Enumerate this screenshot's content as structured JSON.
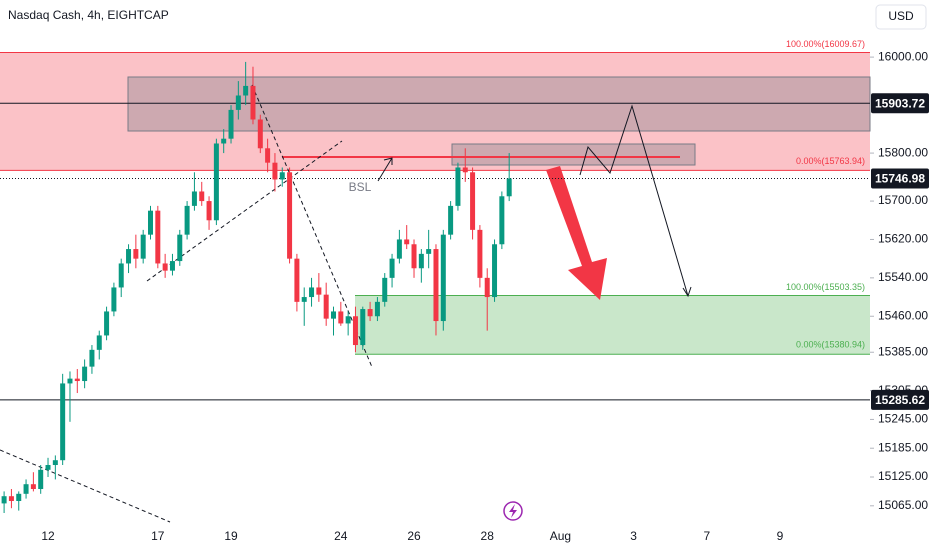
{
  "chart_data": {
    "type": "candlestick",
    "title": "Nasdaq Cash, 4h, EIGHTCAP",
    "currency": "USD",
    "categories": [
      null,
      null,
      null,
      null,
      null,
      null,
      "12",
      null,
      null,
      null,
      null,
      null,
      null,
      null,
      null,
      null,
      null,
      null,
      null,
      null,
      null,
      "17",
      null,
      null,
      null,
      null,
      null,
      null,
      null,
      null,
      null,
      "19",
      null,
      null,
      null,
      null,
      null,
      null,
      null,
      null,
      null,
      null,
      null,
      null,
      null,
      null,
      "24",
      null,
      null,
      null,
      null,
      null,
      null,
      null,
      null,
      null,
      "26",
      null,
      null,
      null,
      null,
      null,
      null,
      null,
      null,
      null,
      "28",
      null,
      null,
      null,
      null,
      null,
      null,
      null,
      null,
      null,
      "Aug",
      null,
      null,
      null,
      null,
      null,
      null,
      null,
      null,
      null,
      "3",
      null,
      null,
      null,
      null,
      null,
      null,
      null,
      null,
      null,
      "7",
      null,
      null,
      null,
      null,
      null,
      null,
      null,
      null,
      null,
      "9",
      null,
      null,
      null,
      null,
      null,
      null,
      null,
      null,
      null,
      null,
      null,
      null
    ],
    "open": [
      15070,
      15085,
      15075,
      15090,
      15110,
      15100,
      15140,
      15150,
      15160,
      15320,
      15330,
      15325,
      15355,
      15390,
      15420,
      15470,
      15520,
      15570,
      15600,
      15580,
      15630,
      15680,
      15570,
      15555,
      15575,
      15630,
      15690,
      15720,
      15700,
      15660,
      15820,
      15830,
      15890,
      15920,
      15940,
      15870,
      15810,
      15780,
      15745,
      15760,
      15580,
      15490,
      15500,
      15520,
      15505,
      15455,
      15470,
      15445,
      15460,
      15400,
      15475,
      15460,
      15490,
      15540,
      15580,
      15620,
      15610,
      15560,
      15590,
      15600,
      15450,
      15630,
      15690,
      15770,
      15760,
      15640,
      15540,
      15500,
      15610,
      15710,
      null,
      null,
      null,
      null,
      null,
      null,
      null,
      null,
      null,
      null,
      null,
      null,
      null,
      null,
      null,
      null,
      null,
      null,
      null,
      null,
      null,
      null,
      null,
      null,
      null,
      null,
      null,
      null,
      null,
      null,
      null,
      null,
      null,
      null,
      null,
      null,
      null,
      null,
      null,
      null,
      null,
      null,
      null,
      null,
      null,
      null,
      null,
      null,
      null
    ],
    "high": [
      15095,
      15100,
      15095,
      15120,
      15135,
      15150,
      15165,
      15170,
      15340,
      15345,
      15350,
      15370,
      15400,
      15430,
      15480,
      15530,
      15580,
      15610,
      15630,
      15640,
      15690,
      15690,
      15590,
      15590,
      15640,
      15700,
      15760,
      15740,
      15710,
      15830,
      15850,
      15900,
      15950,
      15990,
      15980,
      15880,
      15830,
      15800,
      15770,
      15770,
      15590,
      15520,
      15540,
      15550,
      15530,
      15480,
      15490,
      15470,
      15480,
      15480,
      15490,
      15500,
      15550,
      15590,
      15640,
      15650,
      15620,
      15600,
      15640,
      15610,
      15640,
      15700,
      15780,
      15810,
      15770,
      15650,
      15560,
      15620,
      15720,
      15800,
      null,
      null,
      null,
      null,
      null,
      null,
      null,
      null,
      null,
      null,
      null,
      null,
      null,
      null,
      null,
      null,
      null,
      null,
      null,
      null,
      null,
      null,
      null,
      null,
      null,
      null,
      null,
      null,
      null,
      null,
      null,
      null,
      null,
      null,
      null,
      null,
      null,
      null,
      null,
      null,
      null,
      null,
      null,
      null,
      null,
      null,
      null,
      null,
      null
    ],
    "low": [
      15050,
      15060,
      15055,
      15080,
      15095,
      15090,
      15125,
      15120,
      15150,
      15240,
      15300,
      15310,
      15340,
      15370,
      15410,
      15460,
      15500,
      15550,
      15560,
      15570,
      15620,
      15560,
      15540,
      15545,
      15565,
      15620,
      15680,
      15690,
      15640,
      15650,
      15800,
      15820,
      15870,
      15900,
      15860,
      15800,
      15760,
      15720,
      15730,
      15570,
      15470,
      15440,
      15480,
      15490,
      15440,
      15420,
      15440,
      15420,
      15385,
      15390,
      15450,
      15450,
      15480,
      15520,
      15570,
      15600,
      15540,
      15530,
      15560,
      15420,
      15430,
      15620,
      15680,
      15740,
      15620,
      15520,
      15430,
      15490,
      15600,
      15700,
      null,
      null,
      null,
      null,
      null,
      null,
      null,
      null,
      null,
      null,
      null,
      null,
      null,
      null,
      null,
      null,
      null,
      null,
      null,
      null,
      null,
      null,
      null,
      null,
      null,
      null,
      null,
      null,
      null,
      null,
      null,
      null,
      null,
      null,
      null,
      null,
      null,
      null,
      null,
      null,
      null,
      null,
      null,
      null,
      null,
      null,
      null,
      null,
      null
    ],
    "close": [
      15085,
      15075,
      15090,
      15110,
      15100,
      15140,
      15150,
      15160,
      15320,
      15330,
      15325,
      15355,
      15390,
      15420,
      15470,
      15520,
      15570,
      15600,
      15580,
      15630,
      15680,
      15570,
      15555,
      15575,
      15630,
      15690,
      15720,
      15700,
      15660,
      15820,
      15830,
      15890,
      15920,
      15940,
      15870,
      15810,
      15780,
      15745,
      15760,
      15580,
      15490,
      15500,
      15520,
      15505,
      15455,
      15470,
      15445,
      15460,
      15400,
      15475,
      15460,
      15490,
      15540,
      15580,
      15620,
      15610,
      15560,
      15590,
      15600,
      15450,
      15630,
      15690,
      15770,
      15760,
      15640,
      15540,
      15500,
      15610,
      15710,
      15746.98,
      null,
      null,
      null,
      null,
      null,
      null,
      null,
      null,
      null,
      null,
      null,
      null,
      null,
      null,
      null,
      null,
      null,
      null,
      null,
      null,
      null,
      null,
      null,
      null,
      null,
      null,
      null,
      null,
      null,
      null,
      null,
      null,
      null,
      null,
      null,
      null,
      null,
      null,
      null,
      null,
      null,
      null,
      null,
      null,
      null,
      null,
      null,
      null,
      null
    ],
    "up_color": "#089981",
    "down_color": "#f23645",
    "ylim": [
      15025,
      16119
    ],
    "yticks": [
      {
        "value": 16000,
        "label": "16000.00"
      },
      {
        "value": 15800,
        "label": "15800.00"
      },
      {
        "value": 15700,
        "label": "15700.00"
      },
      {
        "value": 15620,
        "label": "15620.00"
      },
      {
        "value": 15540,
        "label": "15540.00"
      },
      {
        "value": 15460,
        "label": "15460.00"
      },
      {
        "value": 15385,
        "label": "15385.00"
      },
      {
        "value": 15305,
        "label": "15305.00"
      },
      {
        "value": 15245,
        "label": "15245.00"
      },
      {
        "value": 15185,
        "label": "15185.00"
      },
      {
        "value": 15125,
        "label": "15125.00"
      },
      {
        "value": 15065,
        "label": "15065.00"
      }
    ],
    "zones": [
      {
        "top": 16009.67,
        "bottom": 15763.94,
        "top_label": "100.00%(16009.67)",
        "bottom_label": "0.00%(15763.94)",
        "color": "#f23645"
      },
      {
        "top": 15503.35,
        "bottom": 15380.94,
        "top_label": "100.00%(15503.35)",
        "bottom_label": "0.00%(15380.94)",
        "color": "#4caf50"
      }
    ],
    "levels": [
      {
        "value": 15903.72,
        "style": "solid"
      },
      {
        "value": 15746.98,
        "style": "dotted"
      },
      {
        "value": 15285.62,
        "style": "solid"
      }
    ],
    "annotations": [
      "BSL"
    ]
  }
}
